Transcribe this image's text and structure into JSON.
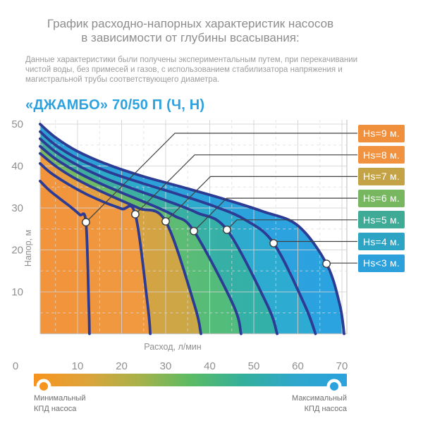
{
  "header": {
    "title_line1": "График расходно-напорных характеристик насосов",
    "title_line2": "в зависимости от глубины всасывания:",
    "description": "Данные характеристики были получены экспериментальным путем, при перекачивании чистой воды, без примесей и газов, с использованием стабилизатора напряжения и магистральной трубы соответствующего диаметра.",
    "model": "«ДЖАМБО» 70/50 П (Ч, Н)"
  },
  "chart_data": {
    "type": "line",
    "title": "«ДЖАМБО» 70/50 П (Ч, Н)",
    "xlabel": "Расход, л/мин",
    "ylabel": "Напор, м",
    "xlim": [
      0,
      80
    ],
    "ylim": [
      0,
      51
    ],
    "x_ticks": [
      0,
      10,
      20,
      30,
      40,
      50,
      60,
      70
    ],
    "y_ticks": [
      10,
      20,
      30,
      40,
      50
    ],
    "grid": true,
    "legend_position": "right",
    "curve_color": "#2C3B94",
    "marker_style": "white circle with dark outline at curve knee",
    "series": [
      {
        "name": "Hs=9 м.",
        "color": "#F1903C",
        "fill": [
          "#F2943C",
          "#F2943C"
        ],
        "marker": [
          11.9,
          26.6
        ],
        "points": [
          [
            1.5,
            36.4
          ],
          [
            3.5,
            34.3
          ],
          [
            6,
            32.2
          ],
          [
            8.5,
            30.2
          ],
          [
            10.5,
            28.4
          ],
          [
            11.9,
            26.6
          ],
          [
            12.55,
            7
          ],
          [
            12.7,
            0
          ]
        ]
      },
      {
        "name": "Hs=8 м.",
        "color": "#F0923F",
        "fill": [
          "#F2943C",
          "#EF9A41"
        ],
        "marker": [
          23.1,
          28.5
        ],
        "points": [
          [
            1.5,
            40.6
          ],
          [
            4,
            38.3
          ],
          [
            8,
            35.6
          ],
          [
            12,
            33.3
          ],
          [
            16,
            31.4
          ],
          [
            20,
            29.8
          ],
          [
            23.1,
            28.5
          ],
          [
            25.9,
            7
          ],
          [
            26.5,
            0
          ]
        ]
      },
      {
        "name": "Hs=7 м.",
        "color": "#C4A347",
        "fill": [
          "#EE9B40",
          "#C8A846"
        ],
        "marker": [
          30,
          26.8
        ],
        "points": [
          [
            1.5,
            43
          ],
          [
            5,
            40
          ],
          [
            9,
            37.3
          ],
          [
            14,
            34.6
          ],
          [
            19,
            32.2
          ],
          [
            24,
            29.9
          ],
          [
            30,
            26.8
          ],
          [
            36.5,
            7
          ],
          [
            38,
            0
          ]
        ]
      },
      {
        "name": "Hs=6 м.",
        "color": "#77B75F",
        "fill": [
          "#7DBA5D",
          "#4EBC7E"
        ],
        "marker": [
          36.4,
          24.5
        ],
        "points": [
          [
            1.5,
            44.7
          ],
          [
            5,
            41.7
          ],
          [
            10,
            38.5
          ],
          [
            15,
            35.9
          ],
          [
            21,
            33.2
          ],
          [
            27,
            30.6
          ],
          [
            32,
            28.1
          ],
          [
            36.4,
            24.5
          ],
          [
            45.3,
            7
          ],
          [
            47.1,
            0
          ]
        ]
      },
      {
        "name": "Hs=5 м.",
        "color": "#3FAB97",
        "fill": [
          "#44AE9B",
          "#32B1A9"
        ],
        "marker": [
          43.9,
          24.8
        ],
        "points": [
          [
            1.5,
            46.5
          ],
          [
            5,
            43.4
          ],
          [
            10,
            40.2
          ],
          [
            16,
            37.2
          ],
          [
            23,
            34.4
          ],
          [
            30,
            31.8
          ],
          [
            37,
            28.9
          ],
          [
            43.9,
            24.8
          ],
          [
            53,
            7
          ],
          [
            55.3,
            0
          ]
        ]
      },
      {
        "name": "Hs=4 м.",
        "color": "#2EA4C4",
        "fill": [
          "#2FA9C6",
          "#2DABD2"
        ],
        "marker": [
          54.5,
          21.6
        ],
        "points": [
          [
            1.5,
            48.2
          ],
          [
            5,
            45
          ],
          [
            10,
            41.8
          ],
          [
            17,
            38.6
          ],
          [
            25,
            35.8
          ],
          [
            33,
            33.2
          ],
          [
            41,
            30.4
          ],
          [
            48,
            27.2
          ],
          [
            54.5,
            21.6
          ],
          [
            61.5,
            7
          ],
          [
            64,
            0
          ]
        ]
      },
      {
        "name": "Hs<3 м.",
        "color": "#2BA0DA",
        "fill": [
          "#2E9FD6",
          "#2BA3E0"
        ],
        "marker": [
          66.5,
          16.7
        ],
        "points": [
          [
            1.5,
            50
          ],
          [
            5,
            46.8
          ],
          [
            10,
            43.5
          ],
          [
            17,
            40.3
          ],
          [
            25,
            37.5
          ],
          [
            34,
            34.9
          ],
          [
            43,
            32.2
          ],
          [
            52,
            29.2
          ],
          [
            60,
            25.8
          ],
          [
            66.5,
            16.7
          ],
          [
            69.5,
            7
          ],
          [
            70.5,
            0
          ]
        ]
      }
    ]
  },
  "efficiency_bar": {
    "min_label": [
      "Минимальный",
      "КПД насоса"
    ],
    "max_label": [
      "Максимальный",
      "КПД насоса"
    ],
    "gradient": [
      "#F7941E",
      "#DDA33A",
      "#A8B14A",
      "#5BBB63",
      "#33B09B",
      "#2EA7CC",
      "#2BA1DD"
    ],
    "min_marker_color": "#F7941E",
    "max_marker_color": "#2BA2DE"
  }
}
